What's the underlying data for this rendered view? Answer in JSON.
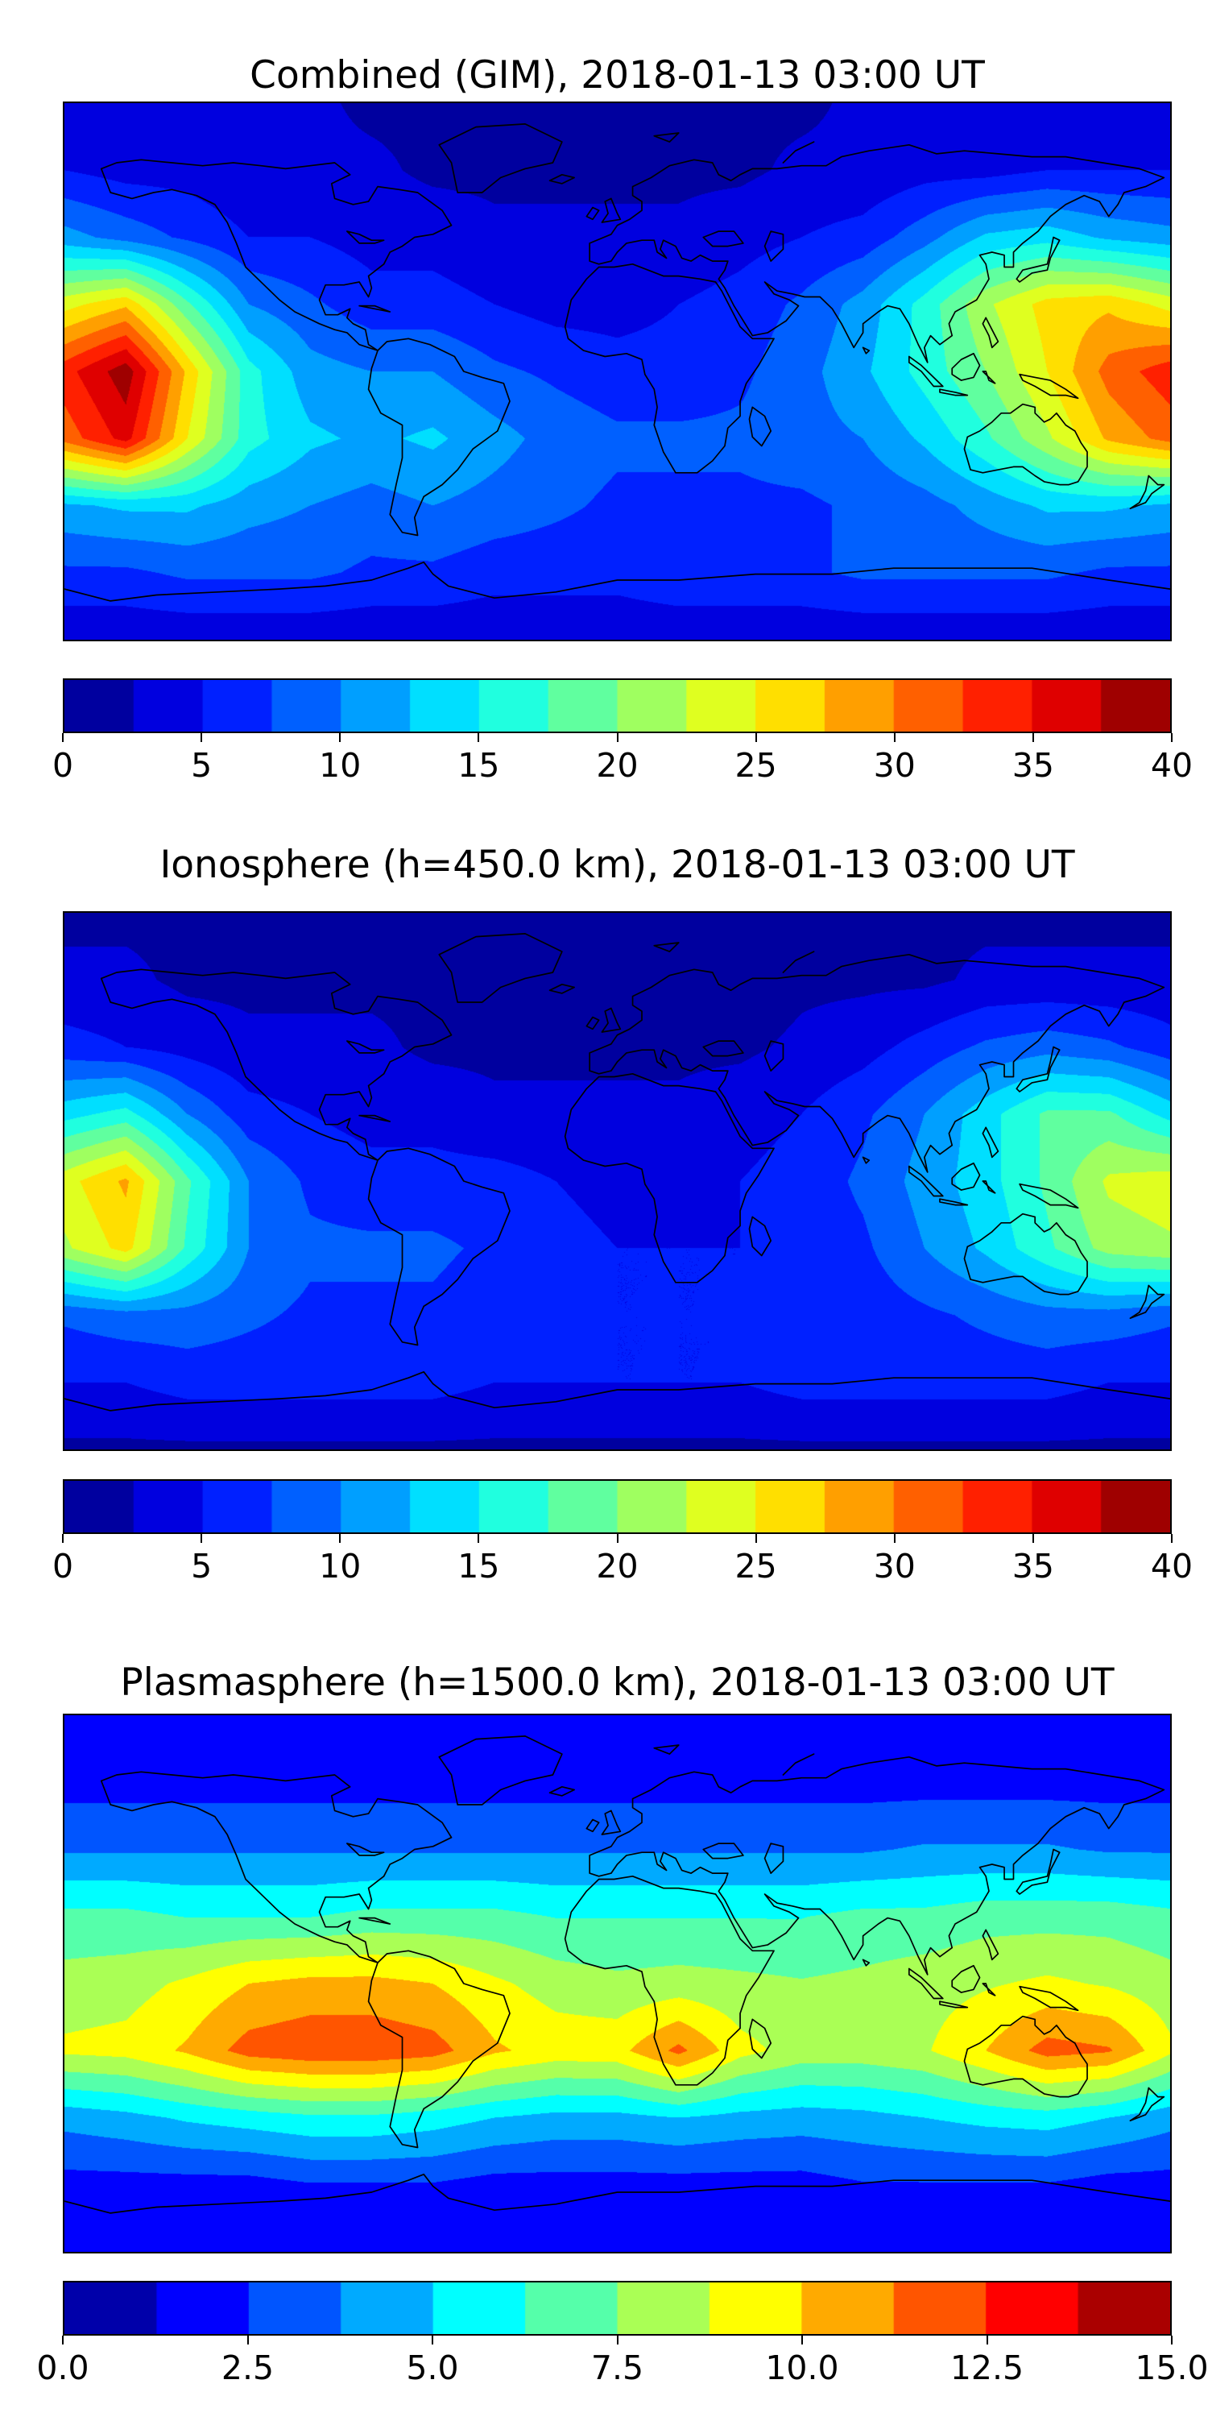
{
  "figure": {
    "background": "#ffffff",
    "panels_count": 3,
    "projection": "equirectangular"
  },
  "chart_data": [
    {
      "type": "heatmap",
      "title": "Combined (GIM), 2018-01-13 03:00 UT",
      "units": "TECU",
      "colormap": "jet",
      "vmin": 0,
      "vmax": 40,
      "contour_step": 2.5,
      "colorbar_position": "bottom",
      "colorbar_ticks": [
        0,
        5,
        10,
        15,
        20,
        25,
        30,
        35,
        40
      ],
      "colorbar_tick_labels": [
        "0",
        "5",
        "10",
        "15",
        "20",
        "25",
        "30",
        "35",
        "40"
      ],
      "lon_range": [
        -180,
        180
      ],
      "lat_range": [
        -90,
        90
      ],
      "grid_lons": [
        -180,
        -160,
        -140,
        -120,
        -100,
        -80,
        -60,
        -40,
        -20,
        0,
        20,
        40,
        60,
        80,
        100,
        120,
        140,
        160,
        180
      ],
      "grid_lats": [
        90,
        67.5,
        45,
        22.5,
        0,
        -22.5,
        -45,
        -67.5,
        -90
      ],
      "values": [
        [
          3,
          3,
          3,
          3,
          3,
          2,
          2,
          2,
          2,
          2,
          2,
          2,
          2,
          3,
          3,
          3,
          3,
          3,
          3
        ],
        [
          5,
          4,
          4,
          3,
          3,
          3,
          2,
          2,
          2,
          2,
          2,
          2,
          3,
          3,
          4,
          4,
          5,
          5,
          5
        ],
        [
          11,
          9,
          7,
          5,
          5,
          4,
          4,
          3,
          3,
          3,
          3,
          4,
          5,
          6,
          9,
          13,
          14,
          12,
          11
        ],
        [
          24,
          27,
          18,
          10,
          8,
          6,
          6,
          5,
          4,
          4,
          5,
          6,
          8,
          11,
          16,
          22,
          26,
          27,
          24
        ],
        [
          34,
          39,
          27,
          16,
          11,
          10,
          10,
          8,
          7,
          6,
          6,
          7,
          9,
          12,
          16,
          20,
          25,
          31,
          34
        ],
        [
          31,
          36,
          25,
          16,
          13,
          12,
          13,
          11,
          9,
          8,
          8,
          8,
          9,
          10,
          13,
          17,
          22,
          28,
          31
        ],
        [
          12,
          13,
          13,
          11,
          10,
          9,
          10,
          9,
          8,
          7,
          7,
          7,
          7,
          8,
          9,
          11,
          13,
          13,
          12
        ],
        [
          7,
          7,
          8,
          8,
          8,
          7,
          7,
          6,
          6,
          6,
          7,
          7,
          7,
          8,
          8,
          8,
          8,
          7,
          7
        ],
        [
          3,
          3,
          3,
          3,
          3,
          3,
          3,
          3,
          3,
          3,
          3,
          3,
          3,
          3,
          3,
          3,
          3,
          3,
          3
        ]
      ]
    },
    {
      "type": "heatmap",
      "title": "Ionosphere  (h=450.0 km), 2018-01-13 03:00 UT",
      "units": "TECU",
      "colormap": "jet",
      "vmin": 0,
      "vmax": 40,
      "contour_step": 2.5,
      "colorbar_position": "bottom",
      "colorbar_ticks": [
        0,
        5,
        10,
        15,
        20,
        25,
        30,
        35,
        40
      ],
      "colorbar_tick_labels": [
        "0",
        "5",
        "10",
        "15",
        "20",
        "25",
        "30",
        "35",
        "40"
      ],
      "lon_range": [
        -180,
        180
      ],
      "lat_range": [
        -90,
        90
      ],
      "grid_lons": [
        -180,
        -160,
        -140,
        -120,
        -100,
        -80,
        -60,
        -40,
        -20,
        0,
        20,
        40,
        60,
        80,
        100,
        120,
        140,
        160,
        180
      ],
      "grid_lats": [
        90,
        67.5,
        45,
        22.5,
        0,
        -22.5,
        -45,
        -67.5,
        -90
      ],
      "values": [
        [
          2,
          2,
          2,
          2,
          2,
          2,
          1,
          1,
          1,
          1,
          1,
          1,
          1,
          2,
          2,
          2,
          2,
          2,
          2
        ],
        [
          3,
          3,
          2,
          2,
          2,
          2,
          2,
          1,
          1,
          1,
          1,
          1,
          2,
          2,
          2,
          3,
          3,
          3,
          3
        ],
        [
          6,
          5,
          4,
          3,
          3,
          3,
          2,
          2,
          2,
          2,
          2,
          2,
          3,
          4,
          6,
          8,
          9,
          8,
          6
        ],
        [
          14,
          16,
          10,
          6,
          5,
          4,
          4,
          3,
          3,
          3,
          3,
          4,
          5,
          7,
          10,
          14,
          18,
          18,
          14
        ],
        [
          24,
          28,
          18,
          10,
          7,
          6,
          6,
          6,
          5,
          4,
          4,
          5,
          6,
          8,
          11,
          14,
          18,
          23,
          24
        ],
        [
          22,
          26,
          17,
          10,
          8,
          8,
          8,
          7,
          6,
          5,
          5,
          5,
          6,
          7,
          10,
          13,
          17,
          21,
          22
        ],
        [
          8,
          9,
          9,
          8,
          7,
          7,
          7,
          6,
          6,
          5,
          5,
          5,
          5,
          6,
          7,
          8,
          9,
          9,
          8
        ],
        [
          5,
          5,
          6,
          6,
          6,
          6,
          6,
          5,
          5,
          5,
          5,
          5,
          6,
          6,
          6,
          6,
          6,
          5,
          5
        ],
        [
          2,
          2,
          2,
          2,
          2,
          2,
          2,
          2,
          2,
          2,
          2,
          2,
          2,
          2,
          2,
          2,
          2,
          2,
          2
        ]
      ]
    },
    {
      "type": "heatmap",
      "title": "Plasmasphere (h=1500.0 km), 2018-01-13 03:00 UT",
      "units": "TECU",
      "colormap": "jet",
      "vmin": 0,
      "vmax": 15,
      "contour_step": 1.25,
      "colorbar_position": "bottom",
      "colorbar_ticks": [
        0,
        2.5,
        5,
        7.5,
        10,
        12.5,
        15
      ],
      "colorbar_tick_labels": [
        "0.0",
        "2.5",
        "5.0",
        "7.5",
        "10.0",
        "12.5",
        "15.0"
      ],
      "lon_range": [
        -180,
        180
      ],
      "lat_range": [
        -90,
        90
      ],
      "grid_lons": [
        -180,
        -160,
        -140,
        -120,
        -100,
        -80,
        -60,
        -40,
        -20,
        0,
        20,
        40,
        60,
        80,
        100,
        120,
        140,
        160,
        180
      ],
      "grid_lats": [
        90,
        67.5,
        45,
        22.5,
        0,
        -22.5,
        -45,
        -67.5,
        -90
      ],
      "values": [
        [
          1.5,
          1.5,
          1.5,
          1.5,
          1.5,
          1.5,
          1.5,
          1.5,
          1.5,
          1.5,
          1.5,
          1.5,
          1.5,
          1.5,
          1.5,
          1.5,
          1.5,
          1.5,
          1.5
        ],
        [
          2,
          2,
          2,
          2,
          2,
          2,
          2,
          2,
          2,
          2,
          2,
          2,
          2,
          2,
          2,
          2,
          2,
          2,
          2
        ],
        [
          3.6,
          3.6,
          3.6,
          3.6,
          3.6,
          3.6,
          3.6,
          3.6,
          3.6,
          3.6,
          3.6,
          3.6,
          3.6,
          3.6,
          3.9,
          3.9,
          3.9,
          3.6,
          3.6
        ],
        [
          6.6,
          6.6,
          6.2,
          6.2,
          6.2,
          6.6,
          6.6,
          6.6,
          6.2,
          6.2,
          6.2,
          6.2,
          6.2,
          6.6,
          6.6,
          7,
          7,
          7,
          6.6
        ],
        [
          8,
          8.2,
          9,
          10,
          10.4,
          10.4,
          10,
          9,
          8.2,
          7.8,
          8,
          7.8,
          7.6,
          7.8,
          8.2,
          8.6,
          9,
          8.6,
          8
        ],
        [
          9,
          9.2,
          10.2,
          11.8,
          12.2,
          12.2,
          11.8,
          10.2,
          9.5,
          9.6,
          11.6,
          9.2,
          8.2,
          8.2,
          8.6,
          10,
          11.8,
          11.4,
          9
        ],
        [
          4.2,
          4.6,
          5.2,
          5.6,
          6,
          6,
          5.6,
          5,
          4.6,
          4.6,
          5,
          4.6,
          4.4,
          4.6,
          5,
          5.4,
          5.6,
          5,
          4.2
        ],
        [
          2,
          2,
          2,
          2,
          2.4,
          2.4,
          2.4,
          2,
          2,
          2,
          2,
          2,
          2,
          2.4,
          2.4,
          2.4,
          2.4,
          2,
          2
        ],
        [
          1.5,
          1.5,
          1.5,
          1.5,
          1.5,
          1.5,
          1.5,
          1.5,
          1.5,
          1.5,
          1.5,
          1.5,
          1.5,
          1.5,
          1.5,
          1.5,
          1.5,
          1.5,
          1.5
        ]
      ]
    }
  ]
}
